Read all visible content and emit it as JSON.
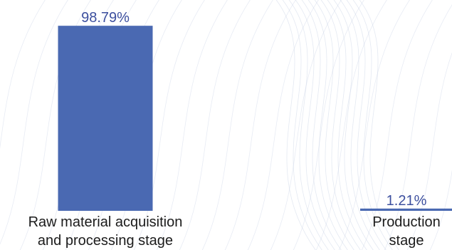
{
  "chart_data": {
    "type": "bar",
    "categories": [
      [
        "Raw material acquisition",
        "and processing stage"
      ],
      [
        "Production",
        "stage"
      ]
    ],
    "values": [
      98.79,
      1.21
    ],
    "value_labels": [
      "98.79%",
      "1.21%"
    ],
    "title": "",
    "xlabel": "",
    "ylabel": "",
    "ylim": [
      0,
      100
    ],
    "grid": false,
    "legend": "none"
  },
  "colors": {
    "bar": "#4a69b2",
    "value_label": "#3c4f9e",
    "category_label": "#1b1b1b",
    "background_pattern": "#c9d3e6"
  }
}
